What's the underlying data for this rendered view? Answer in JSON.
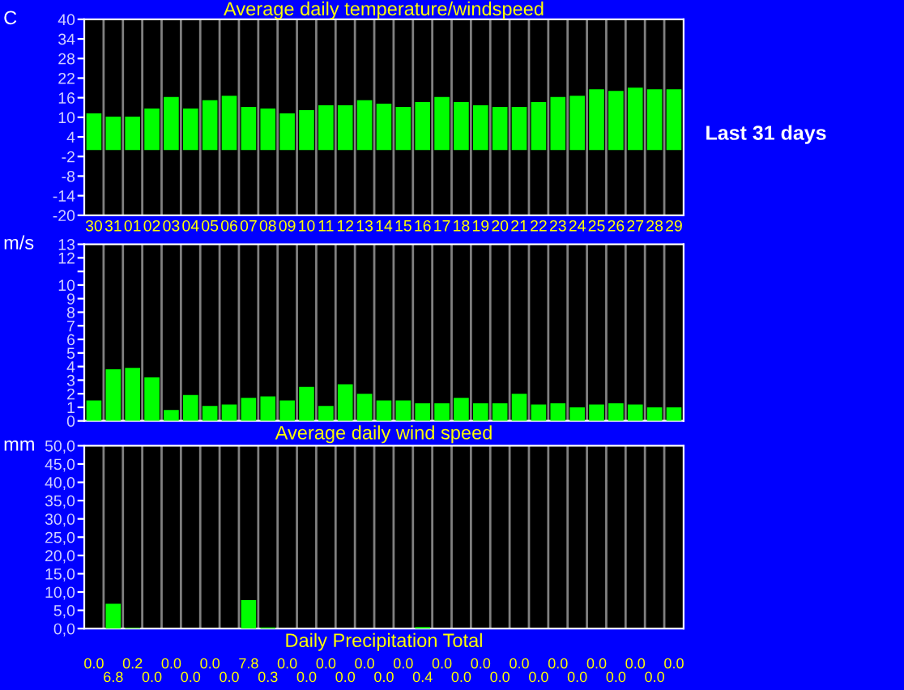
{
  "chart_data": [
    {
      "type": "bar",
      "title": "Average daily temperature/windspeed",
      "ylabel": "C",
      "annotations": [
        "Last 31 days"
      ],
      "categories": [
        "30",
        "31",
        "01",
        "02",
        "03",
        "04",
        "05",
        "06",
        "07",
        "08",
        "09",
        "10",
        "11",
        "12",
        "13",
        "14",
        "15",
        "16",
        "17",
        "18",
        "19",
        "20",
        "21",
        "22",
        "23",
        "24",
        "25",
        "26",
        "27",
        "28",
        "29"
      ],
      "values": [
        11.2,
        10.2,
        10.2,
        12.7,
        16.2,
        12.7,
        15.2,
        16.6,
        13.2,
        12.7,
        11.2,
        12.2,
        13.7,
        13.7,
        15.2,
        14.2,
        13.2,
        14.7,
        16.2,
        14.7,
        13.7,
        13.2,
        13.2,
        14.7,
        16.2,
        16.6,
        18.6,
        18.1,
        19.1,
        18.6,
        18.6
      ],
      "color": "#00ff00",
      "ylim": [
        -20,
        40
      ],
      "yticks": [
        -20,
        -14,
        -8,
        -2,
        4,
        10,
        16,
        22,
        28,
        34,
        40
      ],
      "grid": "x"
    },
    {
      "type": "bar",
      "xlabel": "Average daily wind speed",
      "ylabel": "m/s",
      "tick_labels": "y",
      "categories": [
        "30",
        "31",
        "01",
        "02",
        "03",
        "04",
        "05",
        "06",
        "07",
        "08",
        "09",
        "10",
        "11",
        "12",
        "13",
        "14",
        "15",
        "16",
        "17",
        "18",
        "19",
        "20",
        "21",
        "22",
        "23",
        "24",
        "25",
        "26",
        "27",
        "28",
        "29"
      ],
      "values": [
        1.5,
        3.8,
        3.9,
        3.2,
        0.8,
        1.9,
        1.1,
        1.2,
        1.7,
        1.8,
        1.5,
        2.5,
        1.1,
        2.7,
        2.0,
        1.5,
        1.5,
        1.3,
        1.3,
        1.7,
        1.3,
        1.3,
        2.0,
        1.2,
        1.3,
        1.0,
        1.2,
        1.3,
        1.2,
        1.0,
        1.0
      ],
      "color": "#00ff00",
      "ylim": [
        0,
        13
      ],
      "yticks": [
        0,
        1,
        2,
        3,
        4,
        5,
        6,
        7,
        8,
        9,
        10,
        {
          "value": 11,
          "label": null
        },
        12,
        13
      ],
      "grid": "x"
    },
    {
      "type": "bar",
      "xlabel": "Daily Precipitation Total",
      "ylabel": "mm",
      "tick_labels": "y",
      "categories": [
        "30",
        "31",
        "01",
        "02",
        "03",
        "04",
        "05",
        "06",
        "07",
        "08",
        "09",
        "10",
        "11",
        "12",
        "13",
        "14",
        "15",
        "16",
        "17",
        "18",
        "19",
        "20",
        "21",
        "22",
        "23",
        "24",
        "25",
        "26",
        "27",
        "28",
        "29"
      ],
      "values": [
        0.0,
        6.8,
        0.2,
        0.0,
        0.0,
        0.0,
        0.0,
        0.0,
        7.8,
        0.3,
        0.0,
        0.0,
        0.0,
        0.0,
        0.0,
        0.0,
        0.0,
        0.4,
        0.0,
        0.0,
        0.0,
        0.0,
        0.0,
        0.0,
        0.0,
        0.0,
        0.0,
        0.0,
        0.0,
        0.0,
        0.0
      ],
      "value_labels": [
        "0.0",
        "6.8",
        "0.2",
        "0.0",
        "0.0",
        "0.0",
        "0.0",
        "0.0",
        "7.8",
        "0.3",
        "0.0",
        "0.0",
        "0.0",
        "0.0",
        "0.0",
        "0.0",
        "0.0",
        "0.4",
        "0.0",
        "0.0",
        "0.0",
        "0.0",
        "0.0",
        "0.0",
        "0.0",
        "0.0",
        "0.0",
        "0.0",
        "0.0",
        "0.0",
        "0.0"
      ],
      "color": "#00ff00",
      "ylim": [
        0,
        50
      ],
      "yticks": [
        {
          "value": 0,
          "label": "0,0"
        },
        {
          "value": 5,
          "label": "5,0"
        },
        {
          "value": 10,
          "label": "10,0"
        },
        {
          "value": 15,
          "label": "15,0"
        },
        {
          "value": 20,
          "label": "20,0"
        },
        {
          "value": 25,
          "label": "25,0"
        },
        {
          "value": 30,
          "label": "30,0"
        },
        {
          "value": 35,
          "label": "35,0"
        },
        {
          "value": 40,
          "label": "40,0"
        },
        {
          "value": 45,
          "label": "45,0"
        },
        {
          "value": 50,
          "label": "50,0"
        }
      ],
      "grid": "x"
    }
  ]
}
